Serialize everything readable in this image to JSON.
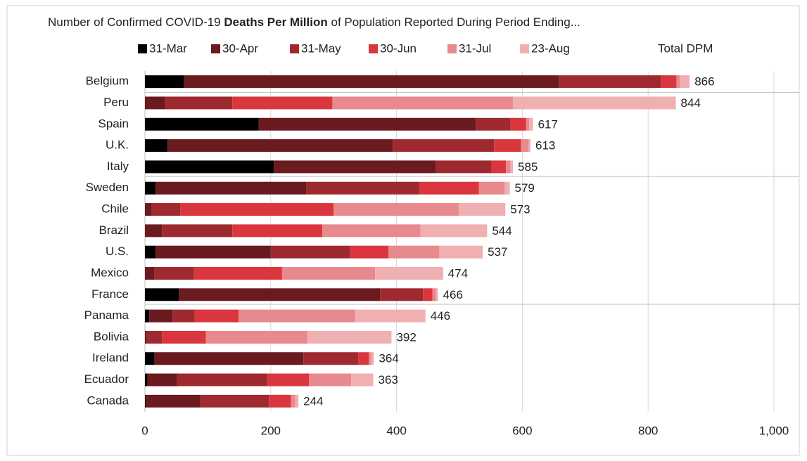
{
  "chart_data": {
    "type": "stacked-bar",
    "orientation": "horizontal",
    "title": [
      "Number of Confirmed COVID-19",
      "Deaths Per Million",
      "of Population Reported During Period Ending..."
    ],
    "categories": [
      "Belgium",
      "Peru",
      "Spain",
      "U.K.",
      "Italy",
      "Sweden",
      "Chile",
      "Brazil",
      "U.S.",
      "Mexico",
      "France",
      "Panama",
      "Bolivia",
      "Ireland",
      "Ecuador",
      "Canada"
    ],
    "series": [
      {
        "name": "31-Mar",
        "color": "#000000",
        "values": [
          62,
          0,
          181,
          36,
          205,
          17,
          0,
          0,
          17,
          0,
          54,
          7,
          0,
          15,
          4,
          1
        ]
      },
      {
        "name": "30-Apr",
        "color": "#6b1a1f",
        "values": [
          596,
          32,
          345,
          358,
          257,
          240,
          11,
          27,
          183,
          15,
          320,
          37,
          3,
          237,
          47,
          87
        ]
      },
      {
        "name": "31-May",
        "color": "#9e2a2f",
        "values": [
          162,
          107,
          55,
          161,
          89,
          180,
          45,
          112,
          126,
          63,
          68,
          35,
          24,
          87,
          143,
          109
        ]
      },
      {
        "name": "30-Jun",
        "color": "#d9363e",
        "values": [
          25,
          159,
          25,
          43,
          23,
          94,
          244,
          143,
          61,
          140,
          15,
          70,
          70,
          17,
          67,
          35
        ]
      },
      {
        "name": "31-Jul",
        "color": "#e8898d",
        "values": [
          6,
          287,
          5,
          12,
          7,
          41,
          199,
          156,
          81,
          148,
          6,
          185,
          161,
          4,
          67,
          7
        ]
      },
      {
        "name": "23-Aug",
        "color": "#f0b0b2",
        "values": [
          15,
          259,
          6,
          3,
          4,
          8,
          74,
          106,
          69,
          108,
          3,
          112,
          134,
          4,
          35,
          5
        ]
      }
    ],
    "totals": {
      "name": "Total DPM",
      "values": [
        866,
        844,
        617,
        613,
        585,
        579,
        573,
        544,
        537,
        474,
        466,
        446,
        392,
        364,
        363,
        244
      ]
    },
    "xlim": [
      0,
      1000
    ],
    "xticks": [
      0,
      200,
      400,
      600,
      800,
      {
        "value": 1000,
        "label": "1,000"
      }
    ],
    "grid": true
  }
}
